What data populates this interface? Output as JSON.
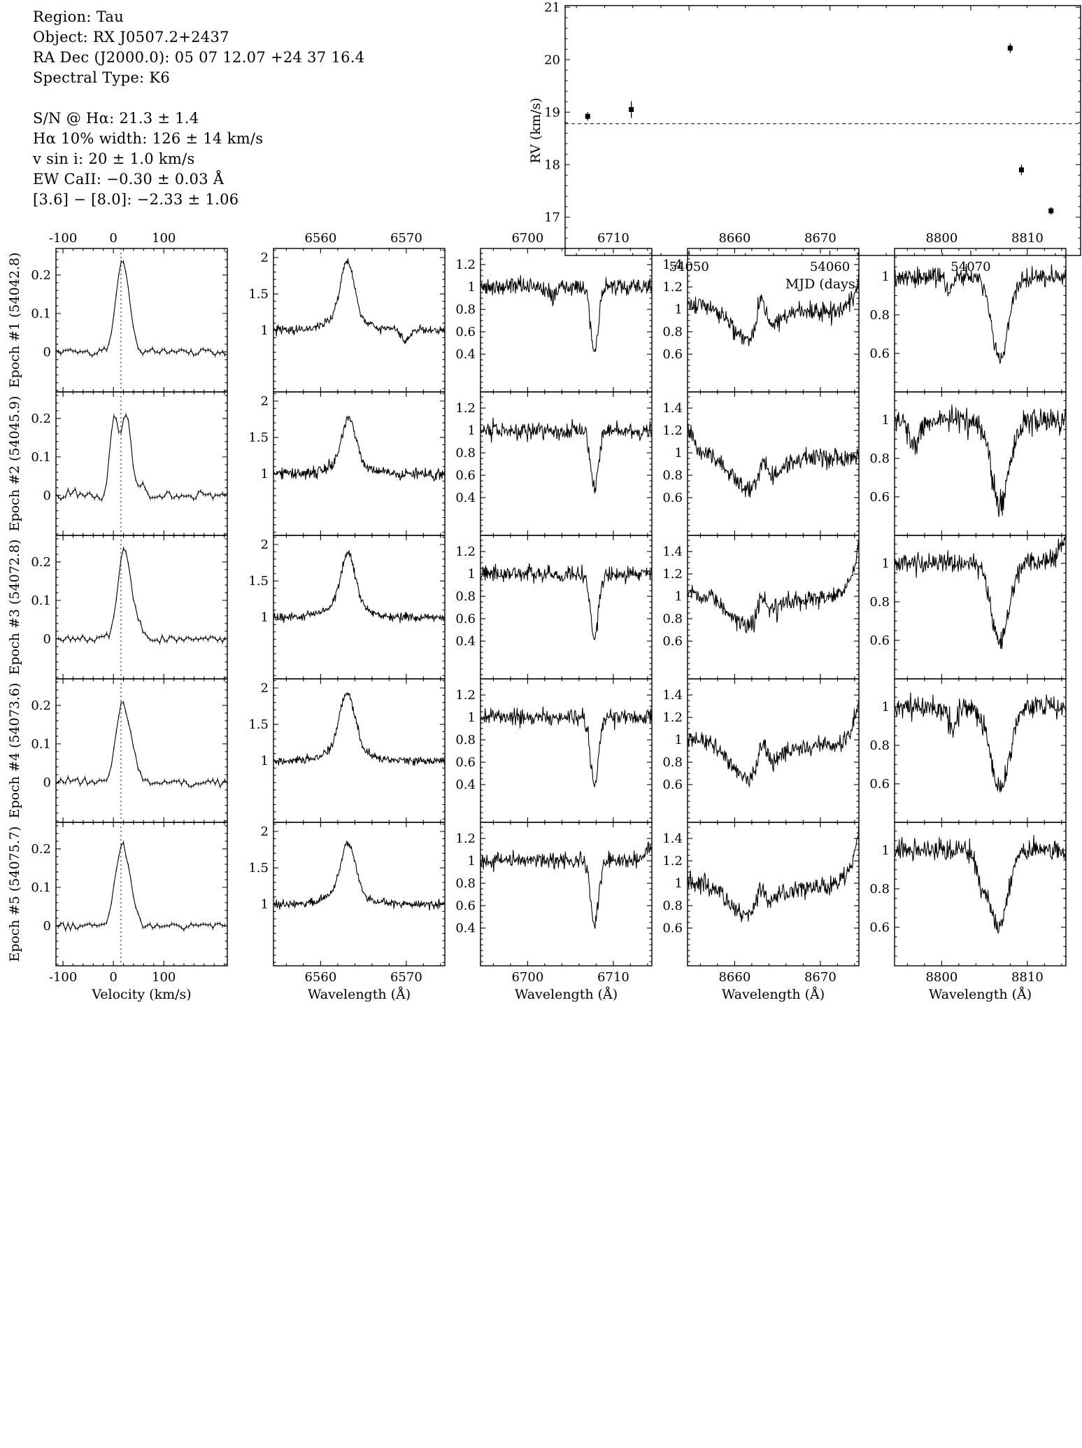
{
  "colors": {
    "ink": "#000000",
    "background": "#ffffff"
  },
  "object_info": {
    "lines_block1": [
      "Region: Tau",
      "Object: RX J0507.2+2437",
      "RA Dec (J2000.0): 05 07 12.07 +24 37 16.4",
      "Spectral Type: K6"
    ],
    "lines_block2": [
      "S/N @ Hα: 21.3 ± 1.4",
      "Hα 10% width: 126 ± 14 km/s",
      "v sin i: 20 ± 1.0 km/s",
      "EW CaII: −0.30 ± 0.03 Å",
      "[3.6] − [8.0]: −2.33 ± 1.06"
    ]
  },
  "chart_data": [
    {
      "id": "rv-vs-mjd",
      "type": "scatter",
      "title": "",
      "xlabel": "MJD (days)",
      "ylabel": "RV (km/s)",
      "xlim": [
        54041.2,
        54077.8
      ],
      "ylim": [
        16.27,
        21.03
      ],
      "xticks": [
        54050,
        54060,
        54070
      ],
      "yticks": [
        17,
        18,
        19,
        20,
        21
      ],
      "grid": false,
      "legend": "none",
      "marker": "filled-square",
      "dashed_hline": 18.78,
      "points": [
        {
          "mjd": 54042.8,
          "rv": 18.92,
          "err": 0.08
        },
        {
          "mjd": 54045.9,
          "rv": 19.05,
          "err": 0.16
        },
        {
          "mjd": 54072.8,
          "rv": 20.22,
          "err": 0.09
        },
        {
          "mjd": 54073.6,
          "rv": 17.9,
          "err": 0.1
        },
        {
          "mjd": 54075.7,
          "rv": 17.12,
          "err": 0.07
        }
      ]
    },
    {
      "id": "spectra-grid",
      "type": "line",
      "description": "5 epochs x 5 spectral windows, black line spectra on white, boxed axes with inward ticks",
      "rows": [
        {
          "label": "Epoch #1 (54042.8)",
          "mjd": 54042.8
        },
        {
          "label": "Epoch #2 (54045.9)",
          "mjd": 54045.9
        },
        {
          "label": "Epoch #3 (54072.8)",
          "mjd": 54072.8
        },
        {
          "label": "Epoch #4 (54073.6)",
          "mjd": 54073.6
        },
        {
          "label": "Epoch #5 (54075.7)",
          "mjd": 54075.7
        }
      ],
      "columns": [
        {
          "key": "halpha-velocity",
          "xlabel": "Velocity (km/s)",
          "xlim": [
            -114,
            226
          ],
          "xticks": [
            -100,
            0,
            100
          ],
          "ylim": [
            -0.104,
            0.269
          ],
          "yticks": [
            0,
            0.1,
            0.2
          ],
          "ydiv": 5,
          "dotted_vline": 15,
          "feature": "Hα emission-line velocity profile"
        },
        {
          "key": "halpha-6563",
          "xlabel": "Wavelength (Å)",
          "xlim": [
            6554.5,
            6574.5
          ],
          "xticks": [
            6560,
            6570
          ],
          "ylim": [
            0.155,
            2.125
          ],
          "yticks": [
            1,
            1.5,
            2
          ],
          "ydiv": 5,
          "feature": "Hα 6563 Å emission"
        },
        {
          "key": "li-6708",
          "xlabel": "Wavelength (Å)",
          "xlim": [
            6694.5,
            6714.5
          ],
          "xticks": [
            6700,
            6710
          ],
          "ylim": [
            0.063,
            1.344
          ],
          "yticks": [
            0.4,
            0.6,
            0.8,
            1,
            1.2
          ],
          "ydiv": 4,
          "feature": "Li I 6708 Å absorption"
        },
        {
          "key": "caii-8662",
          "xlabel": "Wavelength (Å)",
          "xlim": [
            8654.5,
            8674.5
          ],
          "xticks": [
            8660,
            8670
          ],
          "ylim": [
            0.263,
            1.544
          ],
          "yticks": [
            0.6,
            0.8,
            1,
            1.2,
            1.4
          ],
          "ydiv": 4,
          "feature": "Ca II 8662 Å absorption with emission core"
        },
        {
          "key": "line-8806",
          "xlabel": "Wavelength (Å)",
          "xlim": [
            8794.5,
            8814.5
          ],
          "xticks": [
            8800,
            8810
          ],
          "ylim": [
            0.4,
            1.145
          ],
          "yticks": [
            0.6,
            0.8,
            1
          ],
          "ydiv": 4,
          "feature": "8807 Å absorption"
        }
      ],
      "panels": [
        [
          {
            "seed": 11,
            "baseline": 0,
            "noise": 0.008,
            "markers": true,
            "gaussians": [
              [
                16,
                12,
                0.225
              ],
              [
                32,
                9,
                0.05
              ]
            ]
          },
          {
            "seed": 12,
            "baseline": 1,
            "noise": 0.045,
            "gaussians": [
              [
                6563.1,
                0.8,
                0.8
              ],
              [
                6563.1,
                2.3,
                0.16
              ],
              [
                6569.9,
                0.5,
                -0.14
              ]
            ]
          },
          {
            "seed": 13,
            "baseline": 1,
            "noise": 0.055,
            "gaussians": [
              [
                6707.8,
                0.45,
                -0.58
              ],
              [
                6703.0,
                0.3,
                -0.1
              ]
            ]
          },
          {
            "seed": 14,
            "baseline": 1.04,
            "slope": -0.004,
            "noise": 0.06,
            "edge_right": 0.3,
            "gaussians": [
              [
                8661.8,
                2.2,
                -0.28
              ],
              [
                8663.1,
                0.5,
                0.33
              ]
            ]
          },
          {
            "seed": 15,
            "baseline": 1,
            "noise": 0.04,
            "gaussians": [
              [
                8806.8,
                0.95,
                -0.43
              ],
              [
                8800.8,
                0.4,
                -0.08
              ]
            ]
          }
        ],
        [
          {
            "seed": 21,
            "baseline": 0,
            "noise": 0.009,
            "markers": true,
            "gaussians": [
              [
                1,
                8,
                0.2
              ],
              [
                25,
                10,
                0.21
              ],
              [
                57,
                6,
                0.035
              ]
            ]
          },
          {
            "seed": 22,
            "baseline": 1,
            "noise": 0.06,
            "gaussians": [
              [
                6563.3,
                0.8,
                0.62
              ],
              [
                6563,
                2.2,
                0.14
              ]
            ]
          },
          {
            "seed": 23,
            "baseline": 1,
            "noise": 0.06,
            "gaussians": [
              [
                6707.8,
                0.45,
                -0.52
              ]
            ]
          },
          {
            "seed": 24,
            "baseline": 1.0,
            "slope": -0.003,
            "noise": 0.06,
            "edge_left": 0.25,
            "gaussians": [
              [
                8662.0,
                2.4,
                -0.3
              ],
              [
                8663.3,
                0.45,
                0.18
              ]
            ]
          },
          {
            "seed": 25,
            "baseline": 1,
            "noise": 0.05,
            "gaussians": [
              [
                8806.8,
                1.0,
                -0.44
              ],
              [
                8796.8,
                0.5,
                -0.15
              ]
            ]
          }
        ],
        [
          {
            "seed": 31,
            "baseline": 0,
            "noise": 0.008,
            "markers": true,
            "gaussians": [
              [
                20,
                12,
                0.22
              ],
              [
                42,
                11,
                0.055
              ]
            ]
          },
          {
            "seed": 32,
            "baseline": 1,
            "noise": 0.045,
            "gaussians": [
              [
                6563.2,
                0.85,
                0.72
              ],
              [
                6563,
                2.3,
                0.15
              ]
            ]
          },
          {
            "seed": 33,
            "baseline": 1,
            "noise": 0.055,
            "gaussians": [
              [
                6707.8,
                0.45,
                -0.58
              ]
            ]
          },
          {
            "seed": 34,
            "baseline": 1.03,
            "slope": -0.004,
            "noise": 0.06,
            "edge_right": 0.55,
            "gaussians": [
              [
                8661.6,
                2.3,
                -0.27
              ],
              [
                8663.2,
                0.5,
                0.22
              ]
            ]
          },
          {
            "seed": 35,
            "baseline": 1,
            "noise": 0.04,
            "edge_right": 0.15,
            "gaussians": [
              [
                8806.8,
                1.0,
                -0.41
              ]
            ]
          }
        ],
        [
          {
            "seed": 41,
            "baseline": 0,
            "noise": 0.009,
            "markers": true,
            "gaussians": [
              [
                18,
                13,
                0.2
              ],
              [
                40,
                10,
                0.05
              ]
            ]
          },
          {
            "seed": 42,
            "baseline": 1,
            "noise": 0.045,
            "gaussians": [
              [
                6563.1,
                0.9,
                0.78
              ],
              [
                6563,
                2.3,
                0.15
              ]
            ]
          },
          {
            "seed": 43,
            "baseline": 1,
            "noise": 0.055,
            "gaussians": [
              [
                6707.8,
                0.45,
                -0.6
              ]
            ]
          },
          {
            "seed": 44,
            "baseline": 1.02,
            "slope": -0.005,
            "noise": 0.06,
            "edge_right": 0.45,
            "gaussians": [
              [
                8661.9,
                2.4,
                -0.33
              ],
              [
                8663.2,
                0.5,
                0.28
              ]
            ]
          },
          {
            "seed": 45,
            "baseline": 1,
            "noise": 0.045,
            "gaussians": [
              [
                8806.8,
                1.1,
                -0.43
              ],
              [
                8801.3,
                0.5,
                -0.1
              ]
            ]
          }
        ],
        [
          {
            "seed": 51,
            "baseline": 0,
            "noise": 0.008,
            "markers": true,
            "gaussians": [
              [
                15,
                12,
                0.2
              ],
              [
                36,
                11,
                0.06
              ]
            ]
          },
          {
            "seed": 52,
            "baseline": 1,
            "noise": 0.042,
            "gaussians": [
              [
                6563.2,
                0.85,
                0.7
              ],
              [
                6563,
                2.3,
                0.14
              ]
            ]
          },
          {
            "seed": 53,
            "baseline": 1,
            "noise": 0.055,
            "edge_right": 0.15,
            "gaussians": [
              [
                6707.8,
                0.45,
                -0.58
              ]
            ]
          },
          {
            "seed": 54,
            "baseline": 1.02,
            "slope": -0.004,
            "noise": 0.06,
            "edge_right": 0.55,
            "gaussians": [
              [
                8661.6,
                2.3,
                -0.29
              ],
              [
                8663.0,
                0.5,
                0.22
              ]
            ]
          },
          {
            "seed": 55,
            "baseline": 1,
            "noise": 0.04,
            "gaussians": [
              [
                8806.6,
                1.1,
                -0.4
              ],
              [
                8804.6,
                0.5,
                -0.12
              ]
            ]
          }
        ]
      ]
    }
  ]
}
